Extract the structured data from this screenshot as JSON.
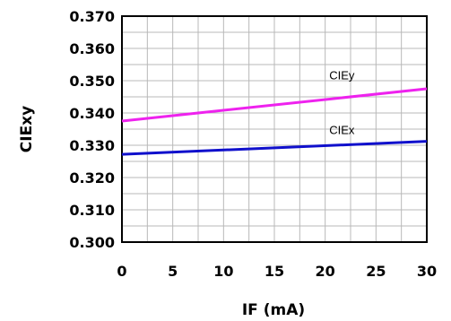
{
  "chart_data": {
    "type": "line",
    "xlabel": "IF (mA)",
    "ylabel": "CIExy",
    "xlim": [
      0,
      30
    ],
    "ylim": [
      0.3,
      0.37
    ],
    "xticks": [
      "0",
      "5",
      "10",
      "15",
      "20",
      "25",
      "30"
    ],
    "yticks": [
      "0.370",
      "0.360",
      "0.350",
      "0.340",
      "0.330",
      "0.320",
      "0.310",
      "0.300"
    ],
    "grid": true,
    "series": [
      {
        "name": "CIEy",
        "color": "#ee22ee",
        "x": [
          0,
          30
        ],
        "y": [
          0.3375,
          0.3475
        ]
      },
      {
        "name": "CIEx",
        "color": "#1010cc",
        "x": [
          0,
          30
        ],
        "y": [
          0.3272,
          0.3312
        ]
      }
    ]
  }
}
